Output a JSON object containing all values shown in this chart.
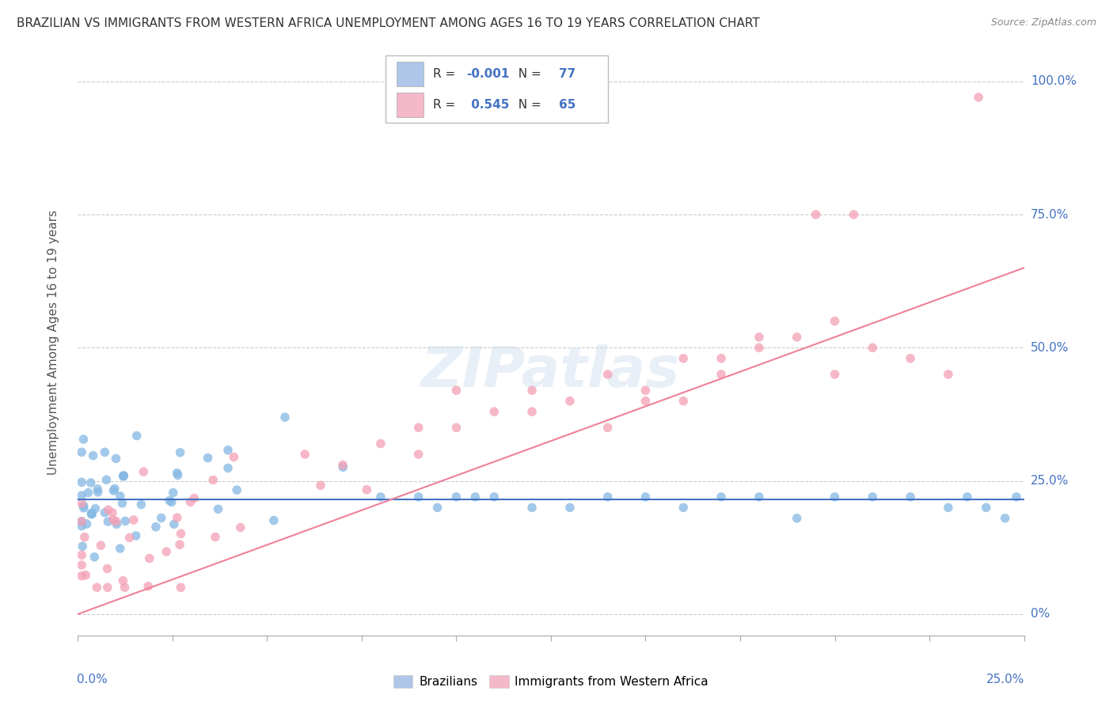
{
  "title": "BRAZILIAN VS IMMIGRANTS FROM WESTERN AFRICA UNEMPLOYMENT AMONG AGES 16 TO 19 YEARS CORRELATION CHART",
  "source": "Source: ZipAtlas.com",
  "ylabel": "Unemployment Among Ages 16 to 19 years",
  "xmin": 0.0,
  "xmax": 0.25,
  "ymin": -0.04,
  "ymax": 1.06,
  "R_blue": -0.001,
  "N_blue": 77,
  "R_pink": 0.545,
  "N_pink": 65,
  "blue_color": "#85B8E3",
  "pink_color": "#F4A0B5",
  "blue_line_color": "#4472C4",
  "pink_line_color": "#F08098",
  "legend_blue_fill": "#AEC6E8",
  "legend_pink_fill": "#F4B8C8",
  "title_color": "#333333",
  "source_color": "#888888",
  "axis_label_color": "#4472C4",
  "grid_color": "#CCCCCC",
  "background_color": "#FFFFFF",
  "blue_trend_y0": 0.215,
  "blue_trend_y1": 0.215,
  "pink_trend_y0": 0.0,
  "pink_trend_y1": 0.65
}
